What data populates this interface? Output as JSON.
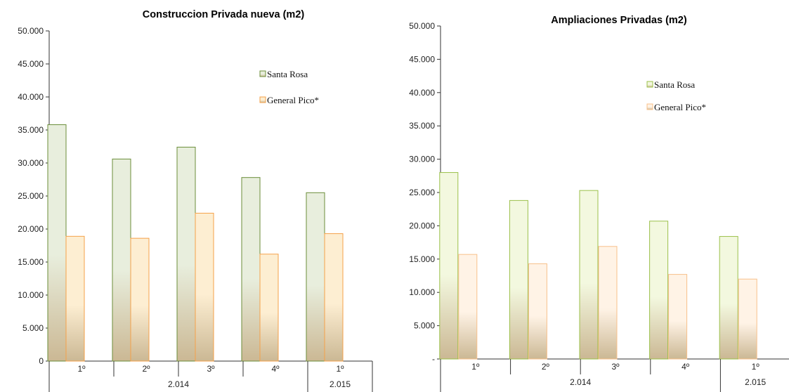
{
  "chart_data": [
    {
      "type": "bar",
      "title": "Construccion Privada nueva (m2)",
      "categories": [
        "1º",
        "2º",
        "3º",
        "4º",
        "1º"
      ],
      "groups": [
        {
          "label": "2.014",
          "span": 4
        },
        {
          "label": "2.015",
          "span": 1
        }
      ],
      "series": [
        {
          "name": "Santa Rosa",
          "values": [
            35800,
            30600,
            32400,
            27800,
            25500
          ]
        },
        {
          "name": "General  Pico*",
          "values": [
            18900,
            18600,
            22400,
            16200,
            19300
          ]
        }
      ],
      "ylim": [
        0,
        50000
      ],
      "yticks": [
        0,
        5000,
        10000,
        15000,
        20000,
        25000,
        30000,
        35000,
        40000,
        45000,
        50000
      ],
      "ytick_labels": [
        "0",
        "5.000",
        "10.000",
        "15.000",
        "20.000",
        "25.000",
        "30.000",
        "35.000",
        "40.000",
        "45.000",
        "50.000"
      ],
      "grid": false,
      "legend_position": "top-right",
      "colors": {
        "Santa Rosa": {
          "fill": "#e8eedd",
          "stroke": "#6b8e3a"
        },
        "General  Pico*": {
          "fill": "#fdeed2",
          "stroke": "#f5a14a"
        }
      }
    },
    {
      "type": "bar",
      "title": "Ampliaciones Privadas (m2)",
      "categories": [
        "1º",
        "2º",
        "3º",
        "4º",
        "1º"
      ],
      "groups": [
        {
          "label": "2.014",
          "span": 4
        },
        {
          "label": "2.015",
          "span": 1
        }
      ],
      "series": [
        {
          "name": "Santa Rosa",
          "values": [
            28000,
            23800,
            25300,
            20700,
            18400
          ]
        },
        {
          "name": "General  Pico*",
          "values": [
            15700,
            14300,
            16900,
            12700,
            12000
          ]
        }
      ],
      "ylim": [
        0,
        50000
      ],
      "yticks": [
        0,
        5000,
        10000,
        15000,
        20000,
        25000,
        30000,
        35000,
        40000,
        45000,
        50000
      ],
      "ytick_labels": [
        "-",
        "5.000",
        "10.000",
        "15.000",
        "20.000",
        "25.000",
        "30.000",
        "35.000",
        "40.000",
        "45.000",
        "50.000"
      ],
      "grid": false,
      "legend_position": "top-right",
      "colors": {
        "Santa Rosa": {
          "fill": "#f3f8df",
          "stroke": "#9bc04a"
        },
        "General  Pico*": {
          "fill": "#fff3e6",
          "stroke": "#f8c08a"
        }
      }
    }
  ]
}
